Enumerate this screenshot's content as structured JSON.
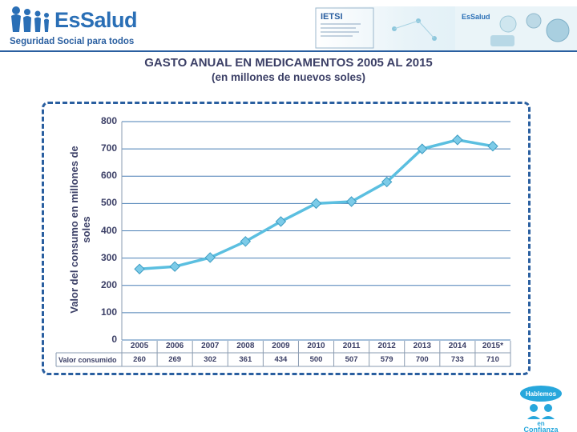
{
  "header": {
    "brand_name": "EsSalud",
    "brand_tagline": "Seguridad Social para todos",
    "banner_brand": "IETSI",
    "banner_right_brand": "EsSalud"
  },
  "slide": {
    "title": "GASTO ANUAL EN MEDICAMENTOS 2005 AL 2015",
    "subtitle": "(en millones de nuevos soles)"
  },
  "chart_data": {
    "type": "line",
    "title": "GASTO ANUAL EN MEDICAMENTOS 2005 AL 2015",
    "subtitle": "(en millones de nuevos soles)",
    "ylabel": "Valor del consumo en millones de soles",
    "ylabel_line1": "Valor del consumo en millones de",
    "ylabel_line2": "soles",
    "xlabel": "",
    "categories": [
      "2005",
      "2006",
      "2007",
      "2008",
      "2009",
      "2010",
      "2011",
      "2012",
      "2013",
      "2014",
      "2015*"
    ],
    "series": [
      {
        "name": "Valor consumido",
        "values": [
          260,
          269,
          302,
          361,
          434,
          500,
          507,
          579,
          700,
          733,
          710
        ]
      }
    ],
    "ylim": [
      0,
      800
    ],
    "yticks": [
      "0",
      "100",
      "200",
      "300",
      "400",
      "500",
      "600",
      "700",
      "800"
    ],
    "grid": true,
    "table_row_label": "Valor consumido",
    "line_color": "#5bbfe0",
    "marker_color": "#7ccbe8",
    "grid_color": "#4a7fb5"
  },
  "badge": {
    "top_text": "Hablemos",
    "mid_text": "en",
    "bottom_text": "Confianza",
    "color": "#27a7dc"
  }
}
